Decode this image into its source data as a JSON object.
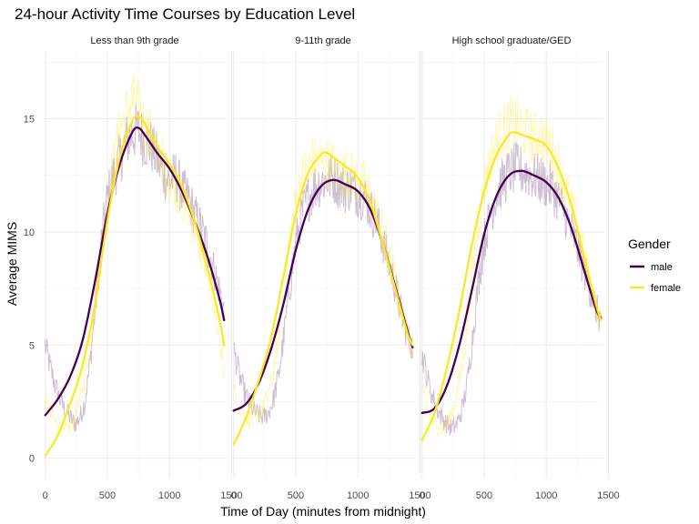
{
  "chart_data": {
    "type": "line",
    "title": "24-hour Activity Time Courses by Education Level",
    "xlabel": "Time of Day (minutes from midnight)",
    "ylabel": "Average MIMS",
    "xlim": [
      -20,
      1460
    ],
    "ylim": [
      -0.9,
      18
    ],
    "x_ticks": [
      0,
      500,
      1000,
      1500
    ],
    "y_ticks": [
      0,
      5,
      10,
      15
    ],
    "legend": {
      "title": "Gender",
      "position": "right",
      "entries": [
        {
          "label": "male",
          "color": "#440154"
        },
        {
          "label": "female",
          "color": "#FDE725"
        }
      ]
    },
    "panels": [
      {
        "label": "Less than 9th grade",
        "series": [
          {
            "name": "male",
            "color": "#440154",
            "smooth": {
              "x": [
                0,
                100,
                200,
                300,
                400,
                500,
                600,
                700,
                750,
                800,
                900,
                1000,
                1100,
                1200,
                1300,
                1400,
                1440
              ],
              "y": [
                1.9,
                2.6,
                3.6,
                5.2,
                7.8,
                10.8,
                13.0,
                14.4,
                14.6,
                14.3,
                13.5,
                12.8,
                11.8,
                10.5,
                9.0,
                7.1,
                6.1
              ]
            },
            "raw": {
              "x": [
                0,
                40,
                80,
                120,
                160,
                200,
                240,
                280,
                320,
                360,
                400,
                450,
                500,
                550,
                600,
                650,
                700,
                750,
                800,
                850,
                900,
                950,
                1000,
                1050,
                1100,
                1150,
                1200,
                1250,
                1300,
                1350,
                1400,
                1440
              ],
              "y": [
                5.0,
                4.0,
                3.2,
                2.6,
                2.1,
                1.8,
                1.5,
                1.8,
                2.5,
                4.2,
                6.5,
                9.5,
                11.5,
                12.5,
                13.2,
                14.0,
                14.3,
                14.5,
                14.0,
                13.8,
                13.2,
                12.6,
                12.2,
                12.5,
                11.8,
                11.5,
                10.8,
                10.2,
                9.5,
                8.5,
                7.5,
                6.5
              ]
            }
          },
          {
            "name": "female",
            "color": "#FDE725",
            "smooth": {
              "x": [
                0,
                100,
                200,
                300,
                400,
                500,
                600,
                700,
                750,
                800,
                900,
                1000,
                1100,
                1200,
                1300,
                1400,
                1440
              ],
              "y": [
                0.1,
                1.0,
                2.4,
                4.1,
                6.8,
                10.5,
                13.3,
                14.9,
                15.1,
                14.8,
                13.8,
                13.0,
                12.0,
                10.5,
                8.5,
                6.2,
                5.0
              ]
            },
            "raw": {
              "x": [
                0,
                40,
                80,
                120,
                160,
                200,
                240,
                280,
                320,
                360,
                400,
                450,
                500,
                550,
                600,
                650,
                700,
                750,
                800,
                850,
                900,
                950,
                1000,
                1050,
                1100,
                1150,
                1200,
                1250,
                1300,
                1350,
                1400,
                1440
              ],
              "y": [
                2.6,
                2.0,
                1.6,
                1.3,
                1.2,
                1.4,
                1.9,
                2.6,
                3.6,
                5.0,
                7.0,
                9.2,
                11.5,
                13.0,
                14.5,
                15.2,
                15.8,
                15.5,
                14.8,
                14.2,
                13.5,
                13.0,
                12.5,
                12.0,
                11.5,
                11.0,
                10.2,
                9.3,
                8.2,
                7.0,
                5.2,
                4.0
              ]
            }
          }
        ]
      },
      {
        "label": "9-11th grade",
        "series": [
          {
            "name": "male",
            "color": "#440154",
            "smooth": {
              "x": [
                0,
                100,
                200,
                300,
                400,
                500,
                600,
                700,
                800,
                900,
                1000,
                1100,
                1200,
                1300,
                1400,
                1440
              ],
              "y": [
                2.1,
                2.4,
                3.3,
                4.8,
                6.8,
                9.2,
                11.0,
                12.0,
                12.3,
                12.1,
                11.8,
                11.0,
                9.5,
                7.6,
                5.6,
                4.9
              ]
            },
            "raw": {
              "x": [
                0,
                40,
                80,
                120,
                160,
                200,
                240,
                280,
                320,
                360,
                400,
                450,
                500,
                550,
                600,
                650,
                700,
                750,
                800,
                850,
                900,
                950,
                1000,
                1050,
                1100,
                1150,
                1200,
                1250,
                1300,
                1350,
                1400,
                1440
              ],
              "y": [
                4.8,
                3.8,
                3.0,
                2.5,
                2.1,
                1.9,
                1.8,
                2.0,
                2.6,
                3.6,
                5.2,
                7.5,
                9.5,
                10.8,
                11.5,
                12.0,
                12.2,
                12.3,
                12.4,
                12.1,
                11.9,
                12.0,
                11.7,
                11.6,
                11.0,
                10.5,
                9.6,
                8.6,
                7.6,
                6.4,
                5.4,
                4.9
              ]
            }
          },
          {
            "name": "female",
            "color": "#FDE725",
            "smooth": {
              "x": [
                0,
                100,
                200,
                300,
                400,
                500,
                600,
                700,
                750,
                800,
                900,
                1000,
                1100,
                1200,
                1300,
                1400,
                1440
              ],
              "y": [
                0.6,
                1.8,
                3.4,
                5.3,
                8.0,
                10.8,
                12.6,
                13.4,
                13.5,
                13.3,
                12.9,
                12.4,
                11.3,
                9.5,
                7.5,
                5.5,
                5.0
              ]
            },
            "raw": {
              "x": [
                0,
                40,
                80,
                120,
                160,
                200,
                240,
                280,
                320,
                360,
                400,
                450,
                500,
                550,
                600,
                650,
                700,
                750,
                800,
                850,
                900,
                950,
                1000,
                1050,
                1100,
                1150,
                1200,
                1250,
                1300,
                1350,
                1400,
                1440
              ],
              "y": [
                3.0,
                2.4,
                2.0,
                1.7,
                1.7,
                1.9,
                2.2,
                2.8,
                3.8,
                5.2,
                7.2,
                9.6,
                11.4,
                12.4,
                12.9,
                13.2,
                13.1,
                13.0,
                12.9,
                12.6,
                12.6,
                12.5,
                12.2,
                12.1,
                11.5,
                10.9,
                10.0,
                9.0,
                7.8,
                6.6,
                5.4,
                4.9
              ]
            }
          }
        ]
      },
      {
        "label": "High school graduate/GED",
        "series": [
          {
            "name": "male",
            "color": "#440154",
            "smooth": {
              "x": [
                0,
                100,
                200,
                300,
                400,
                500,
                600,
                700,
                800,
                900,
                1000,
                1100,
                1200,
                1300,
                1400,
                1440
              ],
              "y": [
                2.0,
                2.2,
                3.2,
                5.0,
                7.4,
                9.9,
                11.6,
                12.5,
                12.7,
                12.5,
                12.2,
                11.5,
                10.2,
                8.4,
                6.6,
                6.2
              ]
            },
            "raw": {
              "x": [
                0,
                40,
                80,
                120,
                160,
                200,
                240,
                280,
                320,
                360,
                400,
                450,
                500,
                550,
                600,
                650,
                700,
                750,
                800,
                850,
                900,
                950,
                1000,
                1050,
                1100,
                1150,
                1200,
                1250,
                1300,
                1350,
                1400,
                1440
              ],
              "y": [
                4.6,
                3.6,
                2.8,
                2.2,
                1.8,
                1.5,
                1.3,
                1.5,
                2.1,
                3.2,
                5.0,
                7.6,
                9.6,
                10.8,
                11.7,
                12.2,
                12.6,
                12.8,
                12.7,
                12.6,
                12.4,
                12.3,
                12.1,
                11.9,
                11.4,
                10.8,
                10.1,
                9.3,
                8.4,
                7.5,
                6.6,
                6.1
              ]
            }
          },
          {
            "name": "female",
            "color": "#FDE725",
            "smooth": {
              "x": [
                0,
                100,
                200,
                300,
                400,
                500,
                600,
                700,
                750,
                800,
                900,
                1000,
                1100,
                1200,
                1300,
                1400,
                1440
              ],
              "y": [
                0.8,
                2.0,
                4.0,
                6.5,
                9.4,
                11.8,
                13.4,
                14.3,
                14.4,
                14.3,
                14.1,
                13.8,
                12.8,
                11.2,
                9.0,
                6.8,
                6.1
              ]
            },
            "raw": {
              "x": [
                0,
                40,
                80,
                120,
                160,
                200,
                240,
                280,
                320,
                360,
                400,
                450,
                500,
                550,
                600,
                650,
                700,
                750,
                800,
                850,
                900,
                950,
                1000,
                1050,
                1100,
                1150,
                1200,
                1250,
                1300,
                1350,
                1400,
                1440
              ],
              "y": [
                3.0,
                2.2,
                1.7,
                1.4,
                1.3,
                1.5,
                2.0,
                2.9,
                4.0,
                5.6,
                7.8,
                10.2,
                12.0,
                13.2,
                14.0,
                14.5,
                14.7,
                14.8,
                14.6,
                14.3,
                14.2,
                14.3,
                14.0,
                13.6,
                12.9,
                12.1,
                11.2,
                10.1,
                9.0,
                7.8,
                6.6,
                5.9
              ]
            }
          }
        ]
      }
    ]
  }
}
